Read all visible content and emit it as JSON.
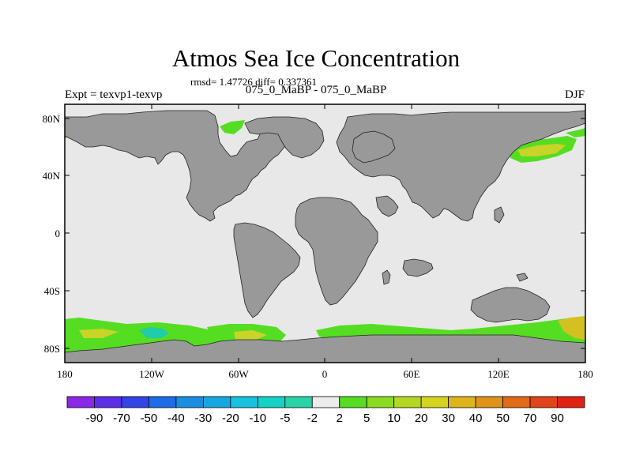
{
  "title": "Atmos Sea Ice Concentration",
  "subtitle": "rmsd= 1.47726 diff= 0.337361",
  "left_string": "Expt = texvp1-texvp",
  "center_string": "075_0_MaBP - 075_0_MaBP",
  "right_string": "DJF",
  "colors": {
    "land": "#999999",
    "ocean": "#e8e8e8",
    "pos_5": "#55dd22",
    "pos_10": "#77dd22",
    "pos_20": "#c8d428",
    "pos_30": "#d4c020",
    "neg_5": "#20ccaa"
  },
  "y_ticks": [
    "80N",
    "40N",
    "0",
    "40S",
    "80S"
  ],
  "x_ticks": [
    "180",
    "120W",
    "60W",
    "0",
    "60E",
    "120E",
    "180"
  ],
  "colorbar": {
    "labels": [
      "-90",
      "-70",
      "-50",
      "-40",
      "-30",
      "-20",
      "-10",
      "-5",
      "-2",
      "2",
      "5",
      "10",
      "20",
      "30",
      "40",
      "50",
      "70",
      "90"
    ],
    "colors": [
      "#8a28e6",
      "#5c2ee6",
      "#3344e6",
      "#1e6ce6",
      "#1a8ee0",
      "#16a6e0",
      "#16c2e0",
      "#14d2c6",
      "#28d4a6",
      "#ececec",
      "#55dd22",
      "#8adb22",
      "#b4d822",
      "#d4d420",
      "#ddb41c",
      "#e0921a",
      "#e26a18",
      "#e04418",
      "#e02214"
    ]
  }
}
